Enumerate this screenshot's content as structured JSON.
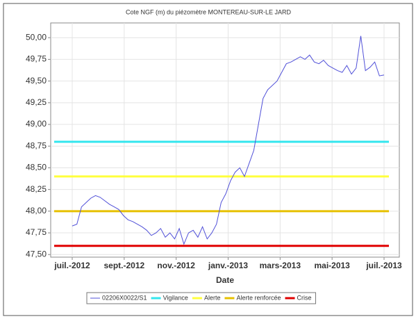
{
  "chart_data": {
    "type": "line",
    "title": "Cote NGF (m) du piézomètre MONTEREAU-SUR-LE JARD",
    "x_label": "Date",
    "xticks": [
      "juil.-2012",
      "sept.-2012",
      "nov.-2012",
      "janv.-2013",
      "mars-2013",
      "mai-2013",
      "juil.-2013"
    ],
    "ylim": [
      47.47,
      50.17
    ],
    "yticks": [
      {
        "value": 47.5,
        "label": "47,50"
      },
      {
        "value": 47.75,
        "label": "47,75"
      },
      {
        "value": 48.0,
        "label": "48,00"
      },
      {
        "value": 48.25,
        "label": "48,25"
      },
      {
        "value": 48.5,
        "label": "48,50"
      },
      {
        "value": 48.75,
        "label": "48,75"
      },
      {
        "value": 49.0,
        "label": "49,00"
      },
      {
        "value": 49.25,
        "label": "49,25"
      },
      {
        "value": 49.5,
        "label": "49,50"
      },
      {
        "value": 49.75,
        "label": "49,75"
      },
      {
        "value": 50.0,
        "label": "50,00"
      }
    ],
    "grid": true,
    "series": [
      {
        "name": "02206X0022/S1",
        "color": "#5050d8",
        "values": [
          47.83,
          47.85,
          48.05,
          48.1,
          48.15,
          48.18,
          48.16,
          48.12,
          48.08,
          48.05,
          48.02,
          47.95,
          47.9,
          47.88,
          47.85,
          47.82,
          47.78,
          47.72,
          47.75,
          47.8,
          47.7,
          47.75,
          47.68,
          47.8,
          47.62,
          47.75,
          47.78,
          47.7,
          47.82,
          47.68,
          47.75,
          47.85,
          48.1,
          48.2,
          48.35,
          48.45,
          48.5,
          48.4,
          48.55,
          48.7,
          49.0,
          49.3,
          49.4,
          49.45,
          49.5,
          49.6,
          49.7,
          49.72,
          49.75,
          49.78,
          49.75,
          49.8,
          49.72,
          49.7,
          49.74,
          49.68,
          49.65,
          49.62,
          49.6,
          49.68,
          49.58,
          49.65,
          50.02,
          49.62,
          49.66,
          49.72,
          49.56,
          49.57
        ]
      }
    ],
    "thresholds": [
      {
        "name": "Vigilance",
        "color": "#33e6ee",
        "value": 48.8
      },
      {
        "name": "Alerte",
        "color": "#ffff3c",
        "value": 48.4
      },
      {
        "name": "Alerte renforcée",
        "color": "#e6c000",
        "value": 48.0
      },
      {
        "name": "Crise",
        "color": "#e00000",
        "value": 47.6
      }
    ]
  }
}
